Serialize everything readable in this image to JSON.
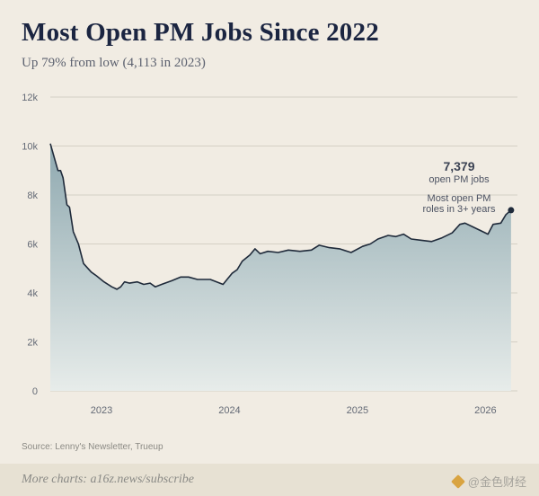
{
  "header": {
    "title": "Most Open PM Jobs Since 2022",
    "subtitle": "Up 79% from low (4,113 in 2023)"
  },
  "source": "Source: Lenny's Newsletter, Trueup",
  "footer": {
    "text": "More charts: a16z.news/subscribe",
    "watermark": "@金色财经"
  },
  "colors": {
    "line": "#1f2a3a",
    "area_top": "#8fa9b0",
    "area_bottom": "#e7ecea",
    "grid": "#d4cfc4",
    "axis_text": "#646a76"
  },
  "chart_data": {
    "type": "area",
    "title": "Most Open PM Jobs Since 2022",
    "subtitle": "Up 79% from low (4,113 in 2023)",
    "xlabel": "",
    "ylabel": "",
    "xlim": [
      2022.6,
      2026.25
    ],
    "ylim": [
      0,
      12000
    ],
    "y_ticks": [
      0,
      2000,
      4000,
      6000,
      8000,
      10000,
      12000
    ],
    "y_tick_labels": [
      "0",
      "2k",
      "4k",
      "6k",
      "8k",
      "10k",
      "12k"
    ],
    "x_ticks": [
      2023,
      2024,
      2025,
      2026
    ],
    "x_tick_labels": [
      "2023",
      "2024",
      "2025",
      "2026"
    ],
    "grid": "horizontal",
    "series": [
      {
        "values": [
          [
            2022.6,
            10100
          ],
          [
            2022.66,
            9000
          ],
          [
            2022.68,
            9000
          ],
          [
            2022.7,
            8700
          ],
          [
            2022.73,
            7600
          ],
          [
            2022.75,
            7500
          ],
          [
            2022.78,
            6500
          ],
          [
            2022.82,
            6000
          ],
          [
            2022.86,
            5200
          ],
          [
            2022.92,
            4850
          ],
          [
            2022.96,
            4700
          ],
          [
            2023.02,
            4450
          ],
          [
            2023.08,
            4250
          ],
          [
            2023.12,
            4150
          ],
          [
            2023.15,
            4250
          ],
          [
            2023.18,
            4450
          ],
          [
            2023.22,
            4400
          ],
          [
            2023.28,
            4450
          ],
          [
            2023.33,
            4350
          ],
          [
            2023.38,
            4400
          ],
          [
            2023.42,
            4250
          ],
          [
            2023.47,
            4350
          ],
          [
            2023.55,
            4500
          ],
          [
            2023.62,
            4650
          ],
          [
            2023.68,
            4650
          ],
          [
            2023.75,
            4550
          ],
          [
            2023.85,
            4550
          ],
          [
            2023.95,
            4350
          ],
          [
            2024.02,
            4800
          ],
          [
            2024.06,
            4950
          ],
          [
            2024.1,
            5300
          ],
          [
            2024.16,
            5550
          ],
          [
            2024.2,
            5800
          ],
          [
            2024.24,
            5600
          ],
          [
            2024.3,
            5700
          ],
          [
            2024.38,
            5650
          ],
          [
            2024.46,
            5750
          ],
          [
            2024.55,
            5700
          ],
          [
            2024.64,
            5750
          ],
          [
            2024.7,
            5950
          ],
          [
            2024.78,
            5850
          ],
          [
            2024.86,
            5800
          ],
          [
            2024.95,
            5650
          ],
          [
            2025.04,
            5900
          ],
          [
            2025.1,
            6000
          ],
          [
            2025.16,
            6200
          ],
          [
            2025.24,
            6350
          ],
          [
            2025.3,
            6300
          ],
          [
            2025.36,
            6400
          ],
          [
            2025.42,
            6200
          ],
          [
            2025.5,
            6150
          ],
          [
            2025.58,
            6100
          ],
          [
            2025.66,
            6250
          ],
          [
            2025.74,
            6450
          ],
          [
            2025.8,
            6800
          ],
          [
            2025.84,
            6850
          ],
          [
            2025.9,
            6700
          ],
          [
            2025.96,
            6550
          ],
          [
            2026.02,
            6400
          ],
          [
            2026.06,
            6800
          ],
          [
            2026.12,
            6850
          ],
          [
            2026.16,
            7200
          ],
          [
            2026.2,
            7379
          ]
        ]
      }
    ],
    "annotations": [
      {
        "text": "7,379",
        "value": 7379
      },
      {
        "text": "open PM jobs"
      },
      {
        "text": "Most open PM"
      },
      {
        "text": "roles in 3+ years"
      }
    ]
  }
}
